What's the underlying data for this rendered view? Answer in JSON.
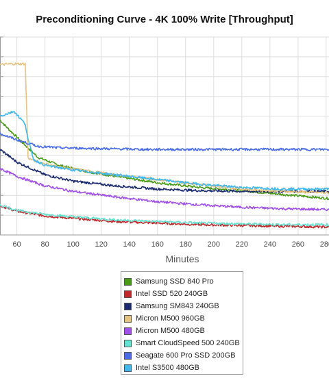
{
  "chart_data": {
    "type": "line",
    "title": "Preconditioning Curve - 4K 100% Write [Throughput]",
    "xlabel": "Minutes",
    "ylabel": "",
    "xlim": [
      48,
      282
    ],
    "ylim": [
      0,
      250
    ],
    "x_ticks": [
      60,
      80,
      100,
      120,
      140,
      160,
      180,
      200,
      220,
      240,
      260,
      280
    ],
    "grid": true,
    "legend_position": "bottom",
    "series": [
      {
        "name": "Samsung SSD 840 Pro",
        "color": "#4a9a1a",
        "x": [
          48,
          55,
          65,
          75,
          90,
          110,
          130,
          160,
          190,
          220,
          250,
          282
        ],
        "y": [
          145,
          132,
          115,
          98,
          88,
          80,
          74,
          66,
          60,
          56,
          51,
          46
        ]
      },
      {
        "name": "Intel SSD 520 240GB",
        "color": "#c0282a",
        "x": [
          48,
          60,
          80,
          100,
          130,
          160,
          190,
          220,
          250,
          282
        ],
        "y": [
          37,
          30,
          24,
          21,
          17,
          15,
          13,
          12,
          11,
          10
        ]
      },
      {
        "name": "Samsung SM843 240GB",
        "color": "#1a2a6e",
        "x": [
          48,
          60,
          80,
          100,
          130,
          160,
          190,
          220,
          250,
          282
        ],
        "y": [
          108,
          92,
          76,
          68,
          62,
          58,
          56,
          55,
          55,
          55
        ]
      },
      {
        "name": "Micron M500 960GB",
        "color": "#e6c280",
        "x": [
          48,
          55,
          60,
          66,
          68,
          75,
          90,
          110,
          130,
          160,
          190,
          220,
          250,
          282
        ],
        "y": [
          215,
          216,
          216,
          216,
          97,
          92,
          86,
          81,
          76,
          70,
          64,
          58,
          55,
          53
        ]
      },
      {
        "name": "Micron M500 480GB",
        "color": "#a050e6",
        "x": [
          48,
          60,
          80,
          100,
          130,
          160,
          190,
          220,
          250,
          282
        ],
        "y": [
          84,
          74,
          62,
          55,
          48,
          42,
          38,
          35,
          33,
          32
        ]
      },
      {
        "name": "Smart CloudSpeed 500 240GB",
        "color": "#66e0d0",
        "x": [
          48,
          60,
          80,
          100,
          130,
          160,
          190,
          220,
          250,
          282
        ],
        "y": [
          38,
          31,
          26,
          23,
          19,
          17,
          15,
          14,
          13,
          13
        ]
      },
      {
        "name": "Seagate 600 Pro SSD 200GB",
        "color": "#4a6ce6",
        "x": [
          48,
          60,
          75,
          90,
          120,
          150,
          180,
          210,
          240,
          282
        ],
        "y": [
          128,
          120,
          112,
          110,
          109,
          108,
          108,
          108,
          108,
          108
        ]
      },
      {
        "name": "Intel S3500 480GB",
        "color": "#40b8ee",
        "x": [
          48,
          58,
          62,
          66,
          68,
          72,
          80,
          100,
          130,
          160,
          190,
          220,
          250,
          282
        ],
        "y": [
          150,
          156,
          148,
          140,
          120,
          95,
          88,
          82,
          76,
          70,
          64,
          60,
          58,
          58
        ]
      }
    ]
  }
}
